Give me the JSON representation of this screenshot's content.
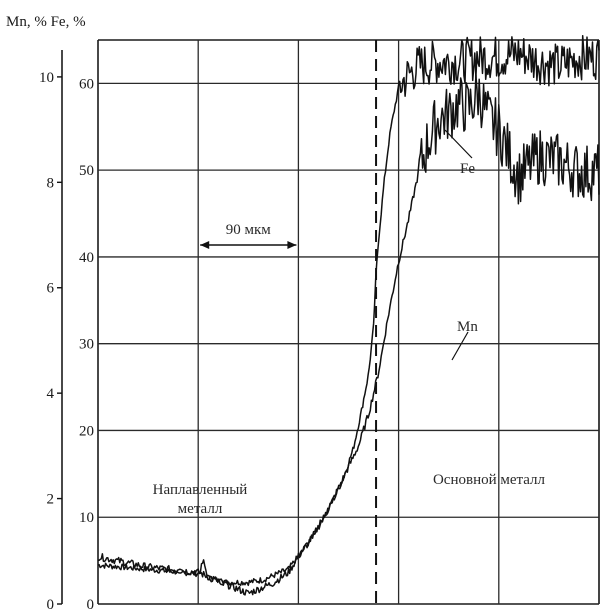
{
  "chart_data": {
    "type": "line",
    "title": "",
    "ylabel": "Mn, % Fe, %",
    "xlabel": "",
    "grid": true,
    "x_range": [
      0,
      100
    ],
    "fe_axis": {
      "ticks": [
        0,
        10,
        20,
        30,
        40,
        50,
        60
      ],
      "range": [
        0,
        65
      ]
    },
    "mn_axis": {
      "ticks": [
        0,
        2,
        4,
        6,
        8,
        10
      ],
      "range": [
        0,
        10.7
      ]
    },
    "x_grid": [
      20,
      40,
      60,
      80,
      100
    ],
    "boundary_x": 55.5,
    "scale_bar": {
      "label": "90 мкм",
      "from": 20,
      "to": 40
    },
    "regions": [
      {
        "label_lines": [
          "Наплавленный",
          "металл"
        ]
      },
      {
        "label_lines": [
          "Основной металл"
        ]
      }
    ],
    "series": [
      {
        "name": "Fe",
        "axis": "fe",
        "x": [
          0,
          10,
          20,
          20.5,
          21,
          22,
          25,
          30,
          33,
          38,
          42,
          45,
          47,
          49,
          51,
          52.5,
          54,
          55,
          55.5,
          56,
          57,
          58,
          58.5,
          60,
          62,
          64,
          68,
          72,
          76,
          80,
          84,
          88,
          92,
          96,
          100
        ],
        "values": [
          4.5,
          4,
          3.5,
          4,
          5,
          3,
          2.5,
          2.5,
          2.8,
          4,
          7,
          10,
          12,
          14.5,
          18,
          22,
          26.5,
          32,
          38,
          42,
          48,
          53,
          55,
          59.5,
          61,
          62,
          62.5,
          62.5,
          63,
          63,
          63.5,
          62.5,
          62,
          63,
          63
        ]
      },
      {
        "name": "Mn",
        "axis": "mn",
        "x": [
          0,
          10,
          20,
          25,
          30,
          35,
          38,
          40,
          43,
          46,
          49,
          52,
          54,
          56,
          58,
          60,
          62,
          64,
          66,
          68,
          70,
          72,
          74,
          76,
          78,
          80,
          84,
          88,
          92,
          96,
          100
        ],
        "values": [
          0.9,
          0.7,
          0.6,
          0.4,
          0.2,
          0.4,
          0.6,
          0.9,
          1.3,
          1.8,
          2.4,
          3.0,
          3.6,
          4.4,
          5.5,
          6.5,
          7.3,
          8.2,
          8.8,
          9.2,
          9.3,
          9.5,
          9.4,
          9.7,
          9.2,
          9.0,
          8.1,
          8.5,
          8.4,
          8.2,
          8.2
        ]
      }
    ]
  }
}
